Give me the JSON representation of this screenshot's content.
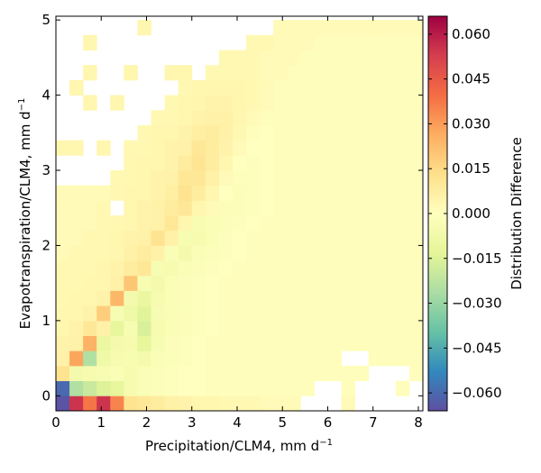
{
  "chart_data": {
    "type": "heatmap",
    "title": "",
    "xlabel": "Precipitation/CLM4,  mm d",
    "xlabel_exponent": "−1",
    "ylabel": "Evapotranspiration/CLM4,  mm d",
    "ylabel_exponent": "−1",
    "colorbar_label": "Distribution Difference",
    "xlim": [
      0,
      8.1
    ],
    "ylim": [
      -0.2,
      5.05
    ],
    "x_ticks": [
      0,
      1,
      2,
      3,
      4,
      5,
      6,
      7,
      8
    ],
    "x_tick_labels": [
      "0",
      "1",
      "2",
      "3",
      "4",
      "5",
      "6",
      "7",
      "8"
    ],
    "y_ticks": [
      0,
      1,
      2,
      3,
      4,
      5
    ],
    "y_tick_labels": [
      "0",
      "1",
      "2",
      "3",
      "4",
      "5"
    ],
    "colorbar_range": [
      -0.066,
      0.066
    ],
    "colorbar_ticks": [
      0.06,
      0.045,
      0.03,
      0.015,
      0.0,
      -0.015,
      -0.03,
      -0.045,
      -0.06
    ],
    "colorbar_tick_labels": [
      "0.060",
      "0.045",
      "0.030",
      "0.015",
      "0.000",
      "−0.015",
      "−0.030",
      "−0.045",
      "−0.060"
    ],
    "colormap": "Spectral_r",
    "bin_width_x": 0.3,
    "bin_height_y": 0.2,
    "x_origin": 0,
    "y_origin": -0.2,
    "n_cols": 27,
    "n_rows": 26,
    "background_value": 0.002,
    "bin_values": [
      [
        -0.065,
        0.055,
        0.038,
        0.055,
        0.035,
        0.012,
        0.01,
        0.008,
        0.006,
        0.005,
        0.004,
        0.004,
        0.003,
        0.003,
        0.003,
        0.002,
        0.002,
        0.002,
        0.002,
        0.002,
        0.002,
        0.002,
        0.002,
        0.002,
        0.002,
        0.002,
        0.002
      ],
      [
        -0.06,
        -0.025,
        -0.02,
        -0.015,
        -0.012,
        -0.005,
        -0.003,
        -0.002,
        -0.001,
        0.0,
        0.0,
        0.001,
        0.001,
        0.001,
        0.001,
        0.001,
        0.001,
        0.001,
        0.001,
        0.001,
        0.001,
        0.001,
        0.001,
        0.001,
        0.001,
        0.001,
        0.001
      ],
      [
        0.012,
        -0.006,
        -0.005,
        -0.004,
        -0.003,
        -0.005,
        -0.003,
        -0.002,
        -0.001,
        0.0,
        0.0,
        0.001,
        0.001,
        0.001,
        0.001,
        0.001,
        0.001,
        0.001,
        0.001,
        0.001,
        0.001,
        0.001,
        0.001,
        0.001,
        0.001,
        0.001,
        0.001
      ],
      [
        0.006,
        0.028,
        -0.025,
        -0.008,
        -0.005,
        -0.004,
        -0.006,
        -0.003,
        -0.002,
        -0.001,
        0.0,
        0.001,
        0.001,
        0.001,
        0.001,
        0.001,
        0.001,
        0.001,
        0.001,
        0.001,
        0.001,
        0.001,
        0.001,
        0.001,
        0.001,
        0.001,
        0.001
      ],
      [
        0.005,
        0.006,
        0.025,
        -0.01,
        -0.006,
        -0.005,
        -0.012,
        -0.004,
        -0.002,
        -0.001,
        0.0,
        0.001,
        0.001,
        0.001,
        0.001,
        0.001,
        0.001,
        0.001,
        0.001,
        0.001,
        0.001,
        0.001,
        0.001,
        0.001,
        0.001,
        0.001,
        0.001
      ],
      [
        0.004,
        0.005,
        0.01,
        0.006,
        -0.012,
        -0.004,
        -0.016,
        -0.005,
        -0.003,
        -0.002,
        -0.001,
        0.0,
        0.001,
        0.001,
        0.001,
        0.001,
        0.001,
        0.001,
        0.001,
        0.001,
        0.001,
        0.001,
        0.001,
        0.001,
        0.001,
        0.001,
        0.001
      ],
      [
        0.004,
        0.004,
        0.005,
        0.018,
        -0.004,
        -0.008,
        -0.014,
        -0.004,
        -0.003,
        -0.002,
        -0.001,
        0.0,
        0.001,
        0.001,
        0.001,
        0.001,
        0.001,
        0.001,
        0.001,
        0.001,
        0.001,
        0.001,
        0.001,
        0.001,
        0.001,
        0.001,
        0.001
      ],
      [
        0.003,
        0.004,
        0.004,
        0.005,
        0.024,
        -0.006,
        -0.01,
        -0.005,
        -0.003,
        -0.002,
        -0.001,
        0.0,
        0.001,
        0.001,
        0.001,
        0.001,
        0.001,
        0.001,
        0.001,
        0.001,
        0.001,
        0.001,
        0.001,
        0.001,
        0.001,
        0.001,
        0.001
      ],
      [
        0.003,
        0.003,
        0.004,
        0.004,
        0.006,
        0.02,
        -0.004,
        -0.006,
        -0.003,
        -0.002,
        -0.001,
        0.0,
        0.001,
        0.001,
        0.001,
        0.001,
        0.001,
        0.001,
        0.001,
        0.001,
        0.001,
        0.001,
        0.001,
        0.001,
        0.001,
        0.001,
        0.001
      ],
      [
        0.003,
        0.003,
        0.003,
        0.004,
        0.005,
        0.008,
        0.01,
        -0.004,
        -0.005,
        -0.003,
        -0.002,
        -0.001,
        0.0,
        0.001,
        0.001,
        0.001,
        0.001,
        0.001,
        0.001,
        0.001,
        0.001,
        0.001,
        0.001,
        0.001,
        0.001,
        0.001,
        0.001
      ],
      [
        0.002,
        0.003,
        0.003,
        0.003,
        0.004,
        0.006,
        0.008,
        0.006,
        -0.003,
        -0.006,
        -0.003,
        -0.002,
        -0.001,
        0.0,
        0.001,
        0.001,
        0.001,
        0.001,
        0.001,
        0.001,
        0.001,
        0.001,
        0.001,
        0.001,
        0.001,
        0.001,
        0.001
      ],
      [
        0.002,
        0.002,
        0.003,
        0.003,
        0.004,
        0.005,
        0.006,
        0.012,
        0.006,
        -0.004,
        -0.005,
        -0.003,
        -0.001,
        0.0,
        0.001,
        0.001,
        0.001,
        0.001,
        0.001,
        0.001,
        0.001,
        0.001,
        0.001,
        0.001,
        0.001,
        0.001,
        0.001
      ],
      [
        0.002,
        0.002,
        0.002,
        0.003,
        0.003,
        0.004,
        0.005,
        0.006,
        0.01,
        0.004,
        -0.004,
        -0.003,
        -0.002,
        -0.001,
        0.0,
        0.001,
        0.001,
        0.001,
        0.001,
        0.001,
        0.001,
        0.001,
        0.001,
        0.001,
        0.001,
        0.001,
        0.001
      ],
      [
        0.002,
        0.002,
        0.002,
        0.003,
        null,
        0.004,
        0.005,
        0.006,
        0.008,
        0.01,
        0.004,
        0.002,
        -0.002,
        -0.002,
        -0.001,
        0.0,
        0.001,
        0.001,
        0.001,
        0.001,
        0.001,
        0.001,
        0.001,
        0.001,
        0.001,
        0.001,
        0.001
      ],
      [
        0.002,
        0.002,
        0.002,
        0.002,
        0.003,
        0.004,
        0.004,
        0.005,
        0.007,
        0.012,
        0.008,
        0.004,
        0.0,
        -0.002,
        -0.001,
        0.0,
        0.001,
        0.001,
        0.001,
        0.001,
        0.001,
        0.001,
        0.001,
        0.001,
        0.001,
        0.001,
        0.001
      ],
      [
        null,
        null,
        null,
        null,
        0.003,
        0.003,
        0.004,
        0.005,
        0.006,
        0.01,
        0.01,
        0.006,
        0.002,
        -0.001,
        -0.001,
        0.0,
        0.001,
        0.001,
        0.001,
        0.001,
        0.001,
        0.001,
        0.001,
        0.001,
        0.001,
        0.001,
        0.001
      ],
      [
        null,
        null,
        null,
        null,
        null,
        0.003,
        0.004,
        0.004,
        0.005,
        0.008,
        0.011,
        0.008,
        0.004,
        0.0,
        -0.001,
        0.0,
        0.001,
        0.001,
        0.001,
        0.001,
        0.001,
        0.001,
        0.001,
        0.001,
        0.001,
        0.001,
        0.001
      ],
      [
        0.004,
        0.004,
        null,
        0.004,
        null,
        0.003,
        0.003,
        0.004,
        0.005,
        0.006,
        0.01,
        0.008,
        0.005,
        0.002,
        0.0,
        0.0,
        0.001,
        0.001,
        0.001,
        0.001,
        0.001,
        0.001,
        0.001,
        0.001,
        0.001,
        0.001,
        0.001
      ],
      [
        null,
        null,
        null,
        null,
        null,
        null,
        0.003,
        0.004,
        0.004,
        0.005,
        0.007,
        0.008,
        0.006,
        0.003,
        0.001,
        0.0,
        0.001,
        0.001,
        0.001,
        0.001,
        0.001,
        0.001,
        0.001,
        0.001,
        0.001,
        0.001,
        0.001
      ],
      [
        null,
        null,
        null,
        null,
        null,
        null,
        null,
        0.003,
        0.003,
        0.004,
        0.005,
        0.006,
        0.006,
        0.004,
        0.002,
        0.001,
        0.001,
        0.001,
        0.001,
        0.001,
        0.001,
        0.001,
        0.001,
        0.001,
        0.001,
        0.001,
        0.001
      ],
      [
        null,
        null,
        0.004,
        null,
        0.004,
        null,
        null,
        null,
        0.003,
        0.004,
        0.004,
        0.005,
        0.005,
        0.004,
        0.003,
        0.002,
        0.001,
        0.001,
        0.001,
        0.001,
        0.001,
        0.001,
        0.001,
        0.001,
        0.001,
        0.001,
        0.001
      ],
      [
        null,
        0.004,
        null,
        null,
        null,
        null,
        null,
        null,
        null,
        0.003,
        0.004,
        0.004,
        0.004,
        0.004,
        0.003,
        0.002,
        0.001,
        0.001,
        0.001,
        0.001,
        0.001,
        0.001,
        0.001,
        0.001,
        0.001,
        0.001,
        0.001
      ],
      [
        null,
        null,
        0.004,
        null,
        null,
        0.004,
        null,
        null,
        0.004,
        0.004,
        null,
        0.003,
        0.003,
        0.003,
        0.003,
        0.002,
        0.002,
        0.001,
        0.001,
        0.001,
        0.001,
        0.001,
        0.001,
        0.001,
        0.001,
        0.001,
        0.001
      ],
      [
        null,
        null,
        null,
        null,
        null,
        null,
        null,
        null,
        null,
        null,
        null,
        null,
        0.003,
        0.003,
        0.003,
        0.002,
        0.002,
        0.002,
        0.001,
        0.001,
        0.001,
        0.001,
        0.001,
        0.001,
        0.001,
        0.001,
        0.001
      ],
      [
        null,
        null,
        0.004,
        null,
        null,
        null,
        null,
        null,
        null,
        null,
        null,
        null,
        null,
        null,
        0.003,
        0.003,
        0.002,
        0.002,
        0.002,
        0.001,
        0.001,
        0.001,
        0.001,
        0.001,
        0.001,
        0.001,
        0.001
      ],
      [
        null,
        null,
        null,
        null,
        null,
        null,
        0.004,
        null,
        null,
        null,
        null,
        null,
        null,
        null,
        null,
        null,
        0.002,
        0.002,
        0.002,
        0.002,
        0.002,
        0.002,
        0.002,
        0.002,
        0.002,
        0.002,
        0.002
      ]
    ],
    "empty_cells": [
      [
        24,
        0
      ],
      [
        25,
        0
      ],
      [
        22,
        0
      ],
      [
        23,
        0
      ],
      [
        22,
        1
      ],
      [
        23,
        1
      ],
      [
        24,
        1
      ],
      [
        23,
        2
      ],
      [
        24,
        2
      ],
      [
        25,
        2
      ],
      [
        21,
        3
      ],
      [
        22,
        3
      ],
      [
        19,
        0
      ],
      [
        20,
        0
      ],
      [
        19,
        1
      ],
      [
        20,
        1
      ],
      [
        18,
        0
      ],
      [
        26,
        1
      ],
      [
        26,
        0
      ]
    ]
  }
}
